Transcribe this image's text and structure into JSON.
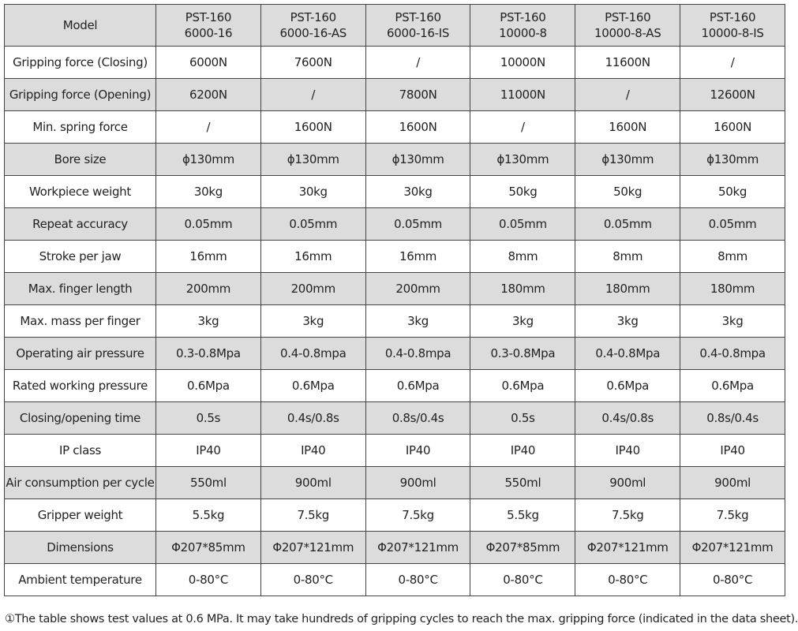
{
  "header": {
    "label": "Model",
    "models": [
      [
        "PST-160",
        "6000-16"
      ],
      [
        "PST-160",
        "6000-16-AS"
      ],
      [
        "PST-160",
        "6000-16-IS"
      ],
      [
        "PST-160",
        "10000-8"
      ],
      [
        "PST-160",
        "10000-8-AS"
      ],
      [
        "PST-160",
        "10000-8-IS"
      ]
    ]
  },
  "rows": [
    {
      "label": "Gripping force (Closing)",
      "values": [
        "6000N",
        "7600N",
        "/",
        "10000N",
        "11600N",
        "/"
      ]
    },
    {
      "label": "Gripping force (Opening)",
      "values": [
        "6200N",
        "/",
        "7800N",
        "11000N",
        "/",
        "12600N"
      ]
    },
    {
      "label": "Min. spring force",
      "values": [
        "/",
        "1600N",
        "1600N",
        "/",
        "1600N",
        "1600N"
      ]
    },
    {
      "label": "Bore size",
      "values": [
        "ϕ130mm",
        "ϕ130mm",
        "ϕ130mm",
        "ϕ130mm",
        "ϕ130mm",
        "ϕ130mm"
      ]
    },
    {
      "label": "Workpiece weight",
      "values": [
        "30kg",
        "30kg",
        "30kg",
        "50kg",
        "50kg",
        "50kg"
      ]
    },
    {
      "label": "Repeat accuracy",
      "values": [
        "0.05mm",
        "0.05mm",
        "0.05mm",
        "0.05mm",
        "0.05mm",
        "0.05mm"
      ]
    },
    {
      "label": "Stroke per jaw",
      "values": [
        "16mm",
        "16mm",
        "16mm",
        "8mm",
        "8mm",
        "8mm"
      ]
    },
    {
      "label": "Max. finger length",
      "values": [
        "200mm",
        "200mm",
        "200mm",
        "180mm",
        "180mm",
        "180mm"
      ]
    },
    {
      "label": "Max. mass per finger",
      "values": [
        "3kg",
        "3kg",
        "3kg",
        "3kg",
        "3kg",
        "3kg"
      ]
    },
    {
      "label": "Operating air pressure",
      "values": [
        "0.3-0.8Mpa",
        "0.4-0.8mpa",
        "0.4-0.8mpa",
        "0.3-0.8Mpa",
        "0.4-0.8Mpa",
        "0.4-0.8mpa"
      ]
    },
    {
      "label": "Rated working pressure",
      "values": [
        "0.6Mpa",
        "0.6Mpa",
        "0.6Mpa",
        "0.6Mpa",
        "0.6Mpa",
        "0.6Mpa"
      ]
    },
    {
      "label": "Closing/opening time",
      "values": [
        "0.5s",
        "0.4s/0.8s",
        "0.8s/0.4s",
        "0.5s",
        "0.4s/0.8s",
        "0.8s/0.4s"
      ]
    },
    {
      "label": "IP class",
      "values": [
        "IP40",
        "IP40",
        "IP40",
        "IP40",
        "IP40",
        "IP40"
      ]
    },
    {
      "label": "Air consumption per cycle",
      "values": [
        "550ml",
        "900ml",
        "900ml",
        "550ml",
        "900ml",
        "900ml"
      ]
    },
    {
      "label": "Gripper weight",
      "values": [
        "5.5kg",
        "7.5kg",
        "7.5kg",
        "5.5kg",
        "7.5kg",
        "7.5kg"
      ]
    },
    {
      "label": "Dimensions",
      "values": [
        "Φ207*85mm",
        "Φ207*121mm",
        "Φ207*121mm",
        "Φ207*85mm",
        "Φ207*121mm",
        "Φ207*121mm"
      ]
    },
    {
      "label": "Ambient temperature",
      "values": [
        "0-80°C",
        "0-80°C",
        "0-80°C",
        "0-80°C",
        "0-80°C",
        "0-80°C"
      ]
    }
  ],
  "footnote": "①The table shows test values at 0.6 MPa. It may take hundreds of gripping cycles to reach the max. gripping force (indicated in the data sheet).",
  "colors": {
    "header_bg": "#dcdcdc",
    "alt_row_bg": "#dcdcdc",
    "border": "#444444"
  }
}
